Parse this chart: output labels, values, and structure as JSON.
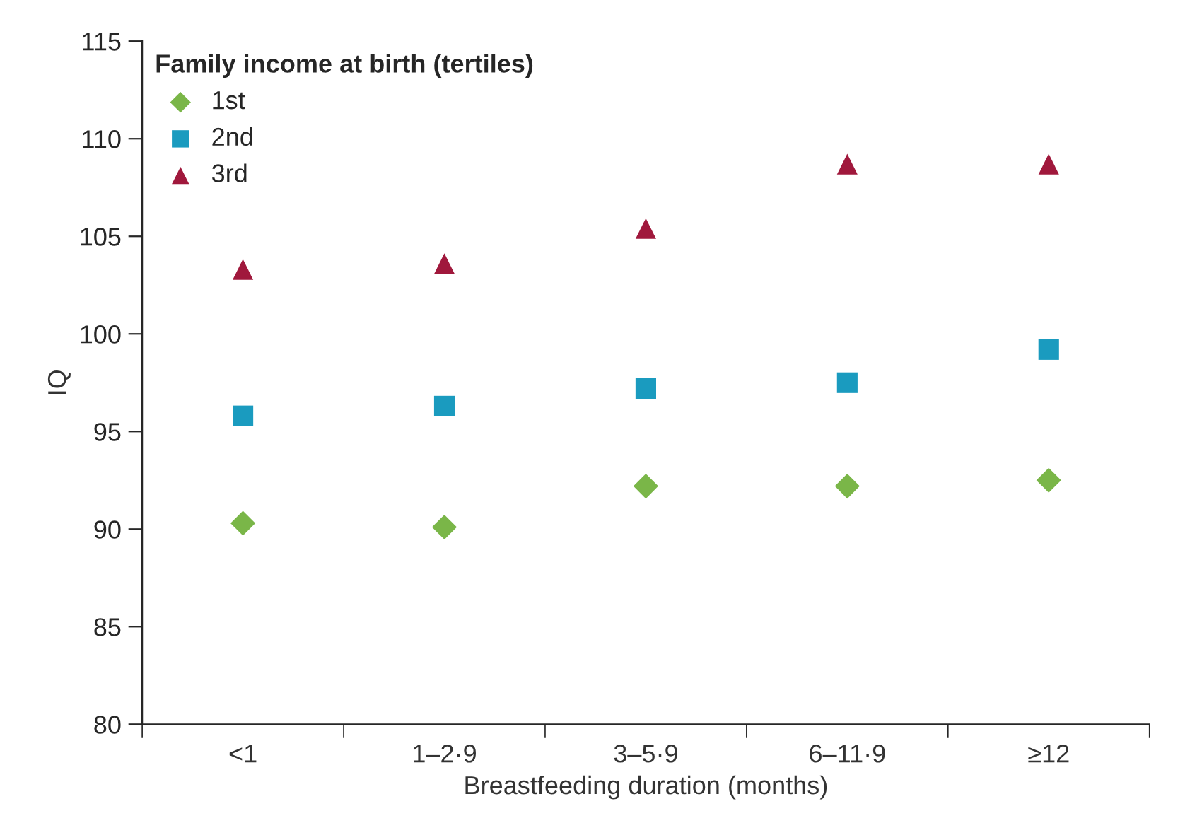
{
  "chart_data": {
    "type": "scatter",
    "xlabel": "Breastfeeding duration (months)",
    "ylabel": "IQ",
    "legend_title": "Family income at birth (tertiles)",
    "categories": [
      "<1",
      "1–2·9",
      "3–5·9",
      "6–11·9",
      "≥12"
    ],
    "series": [
      {
        "name": "1st",
        "color": "#7ab648",
        "marker": "diamond",
        "values": [
          90.3,
          90.1,
          92.2,
          92.2,
          92.5
        ]
      },
      {
        "name": "2nd",
        "color": "#1a9bbf",
        "marker": "square",
        "values": [
          95.8,
          96.3,
          97.2,
          97.5,
          99.2
        ]
      },
      {
        "name": "3rd",
        "color": "#a0183c",
        "marker": "triangle",
        "values": [
          103.3,
          103.6,
          105.4,
          108.7,
          108.7
        ]
      }
    ],
    "ylim": [
      80,
      115
    ],
    "yticks": [
      80,
      85,
      90,
      95,
      100,
      105,
      110,
      115
    ],
    "grid": false,
    "legend": "top left"
  }
}
